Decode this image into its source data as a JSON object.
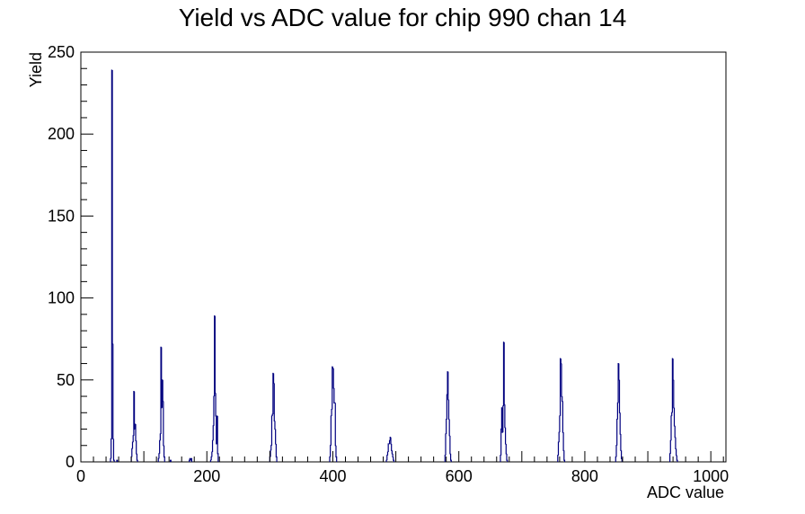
{
  "chart_data": {
    "type": "bar",
    "title": "Yield vs ADC value for chip 990 chan 14",
    "xlabel": "ADC value",
    "ylabel": "Yield",
    "xlim": [
      0,
      1024
    ],
    "ylim": [
      0,
      250
    ],
    "x_ticks": [
      0,
      200,
      400,
      600,
      800,
      1000
    ],
    "y_ticks": [
      0,
      50,
      100,
      150,
      200,
      250
    ],
    "line_color": "#00007f",
    "legend": "none",
    "grid": false,
    "bins": [
      [
        47,
        2
      ],
      [
        48,
        14
      ],
      [
        49,
        239
      ],
      [
        50,
        72
      ],
      [
        51,
        14
      ],
      [
        52,
        1
      ],
      [
        57,
        1
      ],
      [
        80,
        3
      ],
      [
        81,
        8
      ],
      [
        82,
        12
      ],
      [
        83,
        16
      ],
      [
        84,
        43
      ],
      [
        85,
        20
      ],
      [
        86,
        23
      ],
      [
        87,
        13
      ],
      [
        88,
        5
      ],
      [
        89,
        1
      ],
      [
        123,
        2
      ],
      [
        124,
        5
      ],
      [
        125,
        13
      ],
      [
        126,
        17
      ],
      [
        127,
        70
      ],
      [
        128,
        33
      ],
      [
        129,
        50
      ],
      [
        130,
        37
      ],
      [
        131,
        10
      ],
      [
        132,
        3
      ],
      [
        142,
        1
      ],
      [
        172,
        1
      ],
      [
        173,
        2
      ],
      [
        174,
        1
      ],
      [
        175,
        2
      ],
      [
        206,
        1
      ],
      [
        207,
        3
      ],
      [
        208,
        6
      ],
      [
        209,
        13
      ],
      [
        210,
        22
      ],
      [
        211,
        40
      ],
      [
        212,
        89
      ],
      [
        213,
        42
      ],
      [
        214,
        28
      ],
      [
        215,
        11
      ],
      [
        216,
        28
      ],
      [
        217,
        5
      ],
      [
        300,
        3
      ],
      [
        301,
        7
      ],
      [
        302,
        10
      ],
      [
        303,
        28
      ],
      [
        304,
        29
      ],
      [
        305,
        54
      ],
      [
        306,
        48
      ],
      [
        307,
        25
      ],
      [
        308,
        20
      ],
      [
        309,
        11
      ],
      [
        310,
        3
      ],
      [
        395,
        3
      ],
      [
        396,
        10
      ],
      [
        397,
        28
      ],
      [
        398,
        32
      ],
      [
        399,
        58
      ],
      [
        400,
        57
      ],
      [
        401,
        45
      ],
      [
        402,
        36
      ],
      [
        403,
        36
      ],
      [
        404,
        10
      ],
      [
        405,
        3
      ],
      [
        485,
        1
      ],
      [
        486,
        4
      ],
      [
        487,
        6
      ],
      [
        488,
        11
      ],
      [
        489,
        11
      ],
      [
        490,
        13
      ],
      [
        491,
        15
      ],
      [
        492,
        11
      ],
      [
        493,
        7
      ],
      [
        494,
        5
      ],
      [
        495,
        3
      ],
      [
        496,
        1
      ],
      [
        578,
        4
      ],
      [
        579,
        17
      ],
      [
        580,
        26
      ],
      [
        581,
        41
      ],
      [
        582,
        55
      ],
      [
        583,
        38
      ],
      [
        584,
        26
      ],
      [
        585,
        16
      ],
      [
        586,
        5
      ],
      [
        587,
        1
      ],
      [
        666,
        4
      ],
      [
        667,
        20
      ],
      [
        668,
        33
      ],
      [
        669,
        18
      ],
      [
        670,
        34
      ],
      [
        671,
        73
      ],
      [
        672,
        35
      ],
      [
        673,
        21
      ],
      [
        674,
        11
      ],
      [
        675,
        5
      ],
      [
        676,
        1
      ],
      [
        757,
        4
      ],
      [
        758,
        12
      ],
      [
        759,
        18
      ],
      [
        760,
        28
      ],
      [
        761,
        63
      ],
      [
        762,
        60
      ],
      [
        763,
        40
      ],
      [
        764,
        37
      ],
      [
        765,
        18
      ],
      [
        766,
        7
      ],
      [
        767,
        1
      ],
      [
        849,
        3
      ],
      [
        850,
        10
      ],
      [
        851,
        26
      ],
      [
        852,
        36
      ],
      [
        853,
        60
      ],
      [
        854,
        50
      ],
      [
        855,
        30
      ],
      [
        856,
        17
      ],
      [
        857,
        7
      ],
      [
        858,
        2
      ],
      [
        935,
        5
      ],
      [
        936,
        13
      ],
      [
        937,
        28
      ],
      [
        938,
        30
      ],
      [
        939,
        63
      ],
      [
        940,
        50
      ],
      [
        941,
        33
      ],
      [
        942,
        22
      ],
      [
        943,
        15
      ],
      [
        944,
        8
      ],
      [
        945,
        4
      ],
      [
        946,
        1
      ]
    ]
  }
}
